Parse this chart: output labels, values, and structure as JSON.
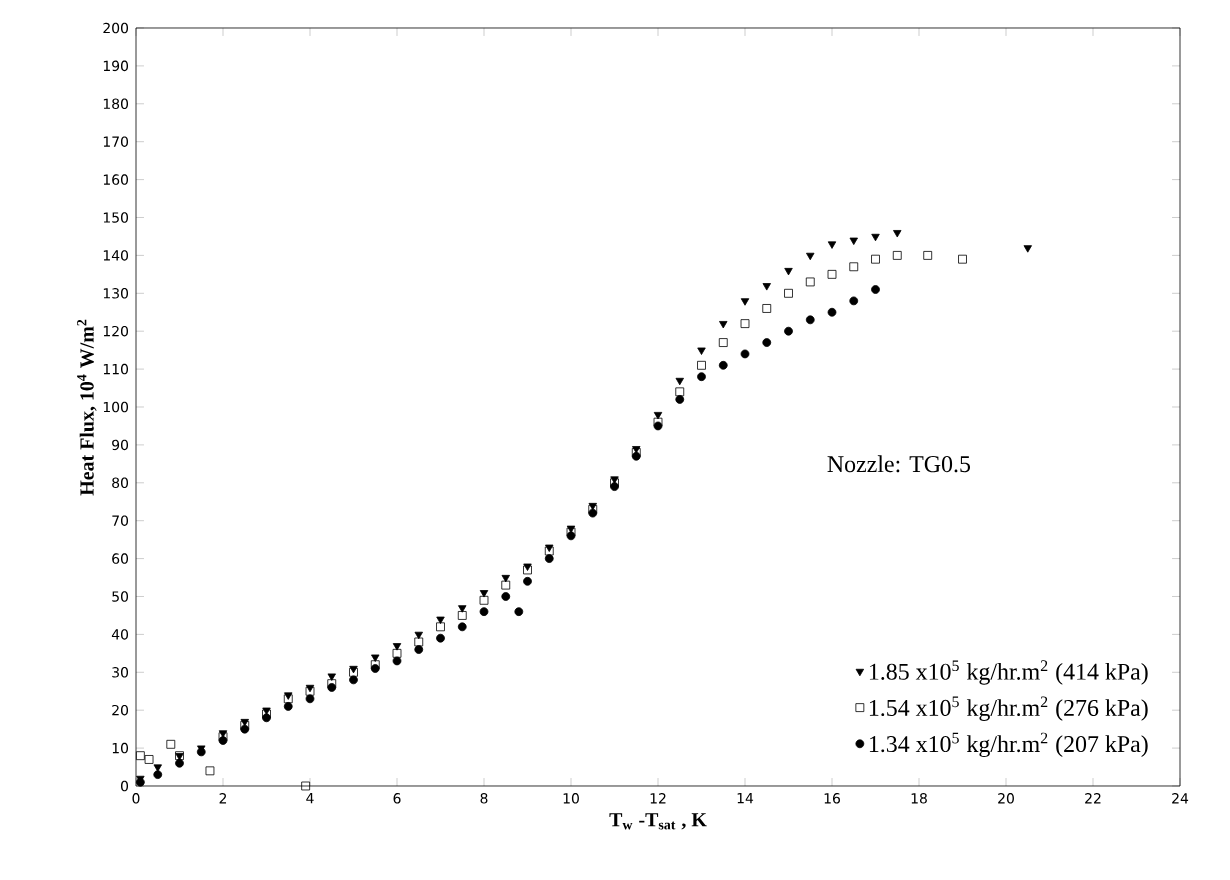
{
  "chart_data": {
    "type": "scatter",
    "xlabel": "T$_{w}$ -T$_{sat}$ , K",
    "ylabel": "Heat Flux, 10$^{4}$ W/m$^{2}$",
    "xlim": [
      0,
      24
    ],
    "xticks": [
      0,
      2,
      4,
      6,
      8,
      10,
      12,
      14,
      16,
      18,
      20,
      22,
      24
    ],
    "ylim": [
      0,
      200
    ],
    "yticks": [
      0,
      10,
      20,
      30,
      40,
      50,
      60,
      70,
      80,
      90,
      100,
      110,
      120,
      130,
      140,
      150,
      160,
      170,
      180,
      190,
      200
    ],
    "grid": false,
    "legend": "bottom right",
    "annotations": [
      "Nozzle: TG0.5"
    ],
    "series": [
      {
        "name": "1.85 x10$^{5}$ kg/hr.m$^{2}$ (414 kPa)",
        "color": "#000000",
        "marker": "triangle",
        "x": [
          0.1,
          0.5,
          1,
          1.5,
          2,
          2.5,
          3,
          3.5,
          4,
          4.5,
          5,
          5.5,
          6,
          6.5,
          7,
          7.5,
          8,
          8.5,
          9,
          9.5,
          10,
          10.5,
          11,
          11.5,
          12,
          12.5,
          13,
          13.5,
          14,
          14.5,
          15,
          15.5,
          16,
          16.5,
          17,
          17.5,
          20.5
        ],
        "values": [
          2,
          5,
          8,
          10,
          14,
          17,
          20,
          24,
          26,
          29,
          31,
          34,
          37,
          40,
          44,
          47,
          51,
          55,
          58,
          63,
          68,
          74,
          81,
          89,
          98,
          107,
          115,
          122,
          128,
          132,
          136,
          140,
          143,
          144,
          145,
          146,
          142
        ]
      },
      {
        "name": "1.54 x10$^{5}$ kg/hr.m$^{2}$ (276 kPa)",
        "color": "#000000",
        "marker": "square",
        "x": [
          0.1,
          0.3,
          0.8,
          1,
          1.7,
          2,
          2.5,
          3,
          3.5,
          3.9,
          4,
          4.5,
          5,
          5.5,
          6,
          6.5,
          7,
          7.5,
          8,
          8.5,
          9,
          9.5,
          10,
          10.5,
          11,
          11.5,
          12,
          12.5,
          13,
          13.5,
          14,
          14.5,
          15,
          15.5,
          16,
          16.5,
          17,
          17.5,
          18.2,
          19
        ],
        "values": [
          8,
          7,
          11,
          8,
          4,
          13,
          16,
          19,
          23,
          0,
          25,
          27,
          30,
          32,
          35,
          38,
          42,
          45,
          49,
          53,
          57,
          62,
          67,
          73,
          80,
          88,
          96,
          104,
          111,
          117,
          122,
          126,
          130,
          133,
          135,
          137,
          139,
          140,
          140,
          139
        ]
      },
      {
        "name": "1.34 x10$^{5}$ kg/hr.m$^{2}$ (207 kPa)",
        "color": "#000000",
        "marker": "circle",
        "x": [
          0.1,
          0.5,
          1,
          1.5,
          2,
          2.5,
          3,
          3.5,
          4,
          4.5,
          5,
          5.5,
          6,
          6.5,
          7,
          7.5,
          8,
          8.5,
          8.8,
          9,
          9.5,
          10,
          10.5,
          11,
          11.5,
          12,
          12.5,
          13,
          13.5,
          14,
          14.5,
          15,
          15.5,
          16,
          16.5,
          17
        ],
        "values": [
          1,
          3,
          6,
          9,
          12,
          15,
          18,
          21,
          23,
          26,
          28,
          31,
          33,
          36,
          39,
          42,
          46,
          50,
          46,
          54,
          60,
          66,
          72,
          79,
          87,
          95,
          102,
          108,
          111,
          114,
          117,
          120,
          123,
          125,
          128,
          131
        ]
      }
    ]
  }
}
